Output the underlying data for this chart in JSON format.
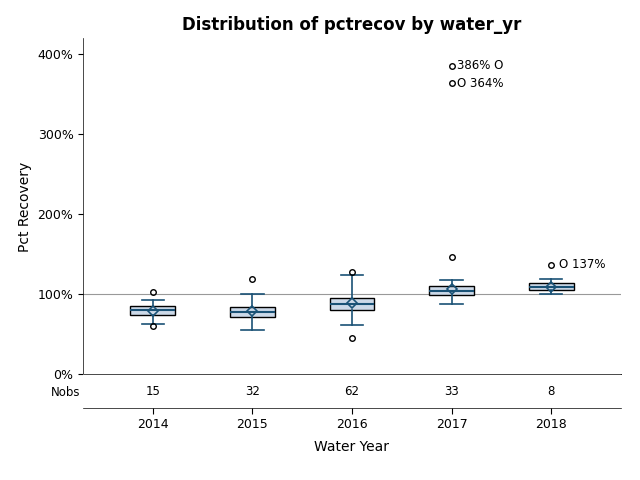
{
  "title": "Distribution of pctrecov by water_yr",
  "xlabel": "Water Year",
  "ylabel": "Pct Recovery",
  "years": [
    2014,
    2015,
    2016,
    2017,
    2018
  ],
  "nobs": [
    15,
    32,
    62,
    33,
    8
  ],
  "box_stats": [
    {
      "med": 80,
      "q1": 74,
      "q3": 86,
      "whislo": 63,
      "whishi": 93,
      "mean": 79,
      "fliers": [
        103,
        60
      ]
    },
    {
      "med": 78,
      "q1": 72,
      "q3": 84,
      "whislo": 55,
      "whishi": 100,
      "mean": 79,
      "fliers": [
        119
      ]
    },
    {
      "med": 88,
      "q1": 80,
      "q3": 96,
      "whislo": 62,
      "whishi": 124,
      "mean": 89,
      "fliers": [
        45,
        128
      ]
    },
    {
      "med": 104,
      "q1": 99,
      "q3": 111,
      "whislo": 88,
      "whishi": 118,
      "mean": 107,
      "fliers": [
        147,
        386,
        364
      ]
    },
    {
      "med": 109,
      "q1": 106,
      "q3": 114,
      "whislo": 101,
      "whishi": 119,
      "mean": 109,
      "fliers": [
        137
      ]
    }
  ],
  "hline_y": 100,
  "ylim": [
    0,
    420
  ],
  "yticks": [
    0,
    100,
    200,
    300,
    400
  ],
  "ytick_labels": [
    "0%",
    "100%",
    "200%",
    "300%",
    "400%"
  ],
  "box_facecolor": "#ccd9e8",
  "box_edgecolor": "#000000",
  "median_color": "#1a5276",
  "whisker_color": "#1a5276",
  "cap_color": "#1a5276",
  "flier_color": "#000000",
  "mean_color": "#1a5276",
  "hline_color": "#999999",
  "title_fontsize": 12,
  "axis_label_fontsize": 10,
  "tick_fontsize": 9,
  "nobs_fontsize": 8.5,
  "background_color": "#ffffff",
  "plot_bg_color": "#ffffff",
  "label_386": "386% O",
  "label_364": "O 364%",
  "label_137": "O 137%"
}
